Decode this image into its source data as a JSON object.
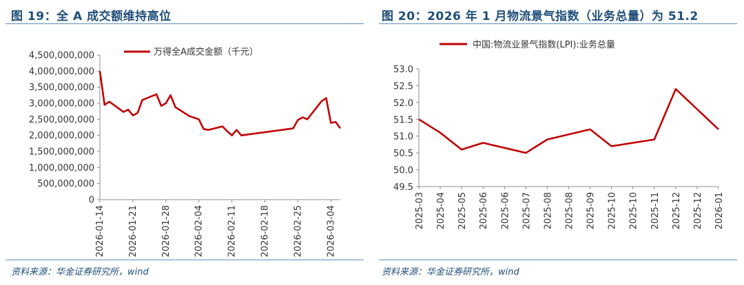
{
  "figure_left": {
    "title": "图 19：全 A 成交额维持高位",
    "source": "资料来源：华金证券研究所，wind"
  },
  "figure_right": {
    "title": "图 20：2026 年 1 月物流景气指数（业务总量）为 51.2",
    "source": "资料来源：华金证券研究所，wind"
  },
  "colors": {
    "series": "#c00000",
    "heading": "#1f4e79",
    "rule": "#5b8fb9",
    "axis": "#8c8c8c"
  },
  "chart_data": [
    {
      "type": "line",
      "title": "",
      "legend": {
        "position": "top",
        "entries": [
          "万得全A成交金额（千元）"
        ]
      },
      "ylim": [
        0,
        4500000000
      ],
      "yticks": [
        0,
        500000000,
        1000000000,
        1500000000,
        2000000000,
        2500000000,
        3000000000,
        3500000000,
        4000000000,
        4500000000
      ],
      "ytick_labels": [
        "0",
        "500,000,000",
        "1,000,000,000",
        "1,500,000,000",
        "2,000,000,000",
        "2,500,000,000",
        "3,000,000,000",
        "3,500,000,000",
        "4,000,000,000",
        "4,500,000,000"
      ],
      "xlim": [
        "2026-01-14",
        "2026-03-06"
      ],
      "xtick_labels": [
        "2026-01-14",
        "2026-01-21",
        "2026-01-28",
        "2026-02-04",
        "2026-02-11",
        "2026-02-18",
        "2026-02-25",
        "2026-03-04"
      ],
      "grid": false,
      "series": [
        {
          "name": "万得全A成交金额（千元）",
          "x": [
            "2026-01-14",
            "2026-01-15",
            "2026-01-16",
            "2026-01-19",
            "2026-01-20",
            "2026-01-21",
            "2026-01-22",
            "2026-01-23",
            "2026-01-26",
            "2026-01-27",
            "2026-01-28",
            "2026-01-29",
            "2026-01-30",
            "2026-02-02",
            "2026-02-03",
            "2026-02-04",
            "2026-02-05",
            "2026-02-06",
            "2026-02-09",
            "2026-02-10",
            "2026-02-11",
            "2026-02-12",
            "2026-02-13",
            "2026-02-24",
            "2026-02-25",
            "2026-02-26",
            "2026-02-27",
            "2026-03-02",
            "2026-03-03",
            "2026-03-04",
            "2026-03-05",
            "2026-03-06"
          ],
          "values": [
            4000000000,
            2950000000,
            3050000000,
            2730000000,
            2800000000,
            2620000000,
            2700000000,
            3100000000,
            3280000000,
            2920000000,
            3000000000,
            3250000000,
            2880000000,
            2600000000,
            2550000000,
            2500000000,
            2200000000,
            2170000000,
            2280000000,
            2130000000,
            2000000000,
            2170000000,
            2000000000,
            2220000000,
            2480000000,
            2560000000,
            2500000000,
            3060000000,
            3160000000,
            2390000000,
            2420000000,
            2220000000
          ]
        }
      ]
    },
    {
      "type": "line",
      "title": "",
      "legend": {
        "position": "top",
        "entries": [
          "中国:物流业景气指数(LPI):业务总量"
        ]
      },
      "ylim": [
        49.5,
        53.0
      ],
      "yticks": [
        49.5,
        50.0,
        50.5,
        51.0,
        51.5,
        52.0,
        52.5,
        53.0
      ],
      "ytick_labels": [
        "49.5",
        "50.0",
        "50.5",
        "51.0",
        "51.5",
        "52.0",
        "52.5",
        "53.0"
      ],
      "categories": [
        "2025-03",
        "2025-04",
        "2025-05",
        "2025-06",
        "2025-06",
        "2025-07",
        "2025-08",
        "2025-08",
        "2025-09",
        "2025-10",
        "2025-10",
        "2025-11",
        "2025-12",
        "2025-12",
        "2026-01"
      ],
      "grid": false,
      "series": [
        {
          "name": "中国:物流业景气指数(LPI):业务总量",
          "x": [
            "2025-03",
            "2025-04",
            "2025-05",
            "2025-06",
            "2025-07",
            "2025-08",
            "2025-09",
            "2025-10",
            "2025-11",
            "2025-12",
            "2026-01"
          ],
          "values": [
            51.5,
            51.1,
            50.6,
            50.8,
            50.5,
            50.9,
            51.2,
            50.7,
            50.9,
            52.4,
            51.2
          ]
        }
      ]
    }
  ]
}
